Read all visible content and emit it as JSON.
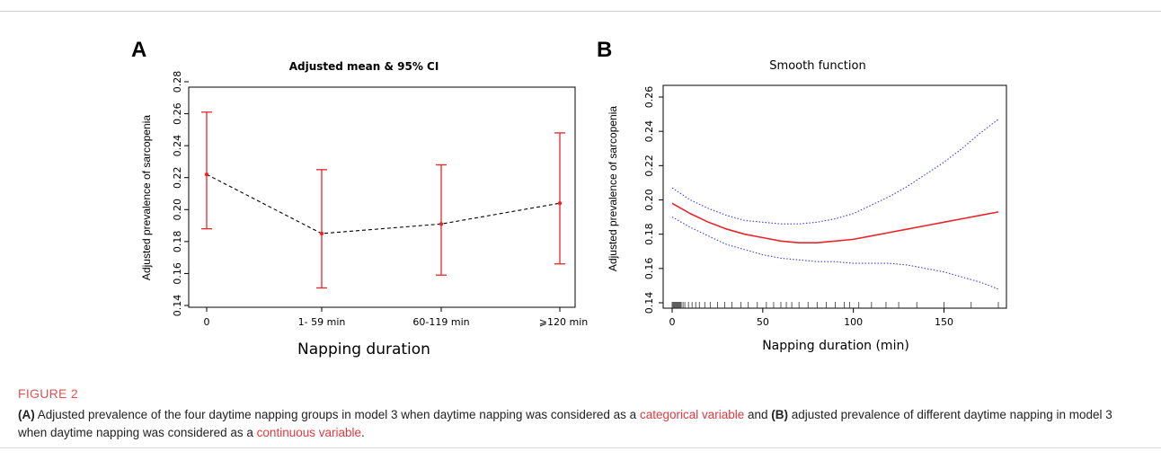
{
  "figure": {
    "label": "FIGURE 2",
    "caption": {
      "a_marker": "(A)",
      "part1": " Adjusted prevalence of the four daytime napping groups in model 3 when daytime napping was considered as a ",
      "link1": "categorical variable",
      "part2": " and ",
      "b_marker": "(B)",
      "part3": " adjusted prevalence of different daytime napping in model 3 when daytime napping was considered as a ",
      "link2": "continuous variable",
      "part4": "."
    }
  },
  "colors": {
    "red": "#e8262a",
    "blue": "#3b3bf0",
    "black": "#000000",
    "link": "#e0393e"
  },
  "chart_data": [
    {
      "panel": "A",
      "type": "scatter",
      "title": "Adjusted mean & 95% CI",
      "xlabel": "Napping duration",
      "ylabel": "Adjusted prevalence of sarcopenia",
      "categories": [
        "0",
        "1- 59 min",
        "60-119 min",
        "⩾120 min"
      ],
      "series": [
        {
          "values": [
            0.222,
            0.185,
            0.191,
            0.204
          ],
          "lower": [
            0.188,
            0.151,
            0.159,
            0.166
          ],
          "upper": [
            0.261,
            0.225,
            0.228,
            0.248
          ]
        }
      ],
      "ylim": [
        0.14,
        0.28
      ],
      "yticks": [
        0.14,
        0.16,
        0.18,
        0.2,
        0.22,
        0.24,
        0.26,
        0.28
      ],
      "ytick_labels": [
        "0.14",
        "0.16",
        "0.18",
        "0.20",
        "0.22",
        "0.24",
        "0.26",
        "0.28"
      ],
      "grid": false
    },
    {
      "panel": "B",
      "type": "line",
      "title": "Smooth function",
      "xlabel": "Napping duration (min)",
      "ylabel": "Adjusted prevalence of sarcopenia",
      "x": [
        0,
        10,
        20,
        30,
        40,
        50,
        60,
        70,
        80,
        90,
        100,
        110,
        120,
        130,
        140,
        150,
        160,
        170,
        180
      ],
      "series": [
        {
          "values": [
            0.198,
            0.192,
            0.187,
            0.183,
            0.18,
            0.178,
            0.176,
            0.175,
            0.175,
            0.176,
            0.177,
            0.179,
            0.181,
            0.183,
            0.185,
            0.187,
            0.189,
            0.191,
            0.193
          ]
        },
        {
          "values": [
            0.207,
            0.2,
            0.195,
            0.191,
            0.188,
            0.187,
            0.186,
            0.186,
            0.187,
            0.189,
            0.192,
            0.197,
            0.202,
            0.208,
            0.215,
            0.222,
            0.23,
            0.239,
            0.247
          ]
        },
        {
          "values": [
            0.19,
            0.184,
            0.179,
            0.174,
            0.171,
            0.168,
            0.166,
            0.165,
            0.164,
            0.164,
            0.163,
            0.163,
            0.163,
            0.162,
            0.16,
            0.158,
            0.155,
            0.152,
            0.148
          ]
        }
      ],
      "rug": [
        0,
        0.5,
        1,
        1.5,
        2,
        2.5,
        3,
        3.5,
        4,
        4.5,
        5,
        6,
        7,
        9,
        11,
        13,
        15,
        18,
        21,
        25,
        29,
        33,
        38,
        42,
        47,
        52,
        56,
        60,
        63,
        66,
        70,
        75,
        80,
        85,
        90,
        95,
        98,
        103,
        110,
        118,
        125,
        135,
        150,
        165,
        180
      ],
      "xlim": [
        0,
        180
      ],
      "xticks": [
        0,
        50,
        100,
        150
      ],
      "ylim": [
        0.14,
        0.26
      ],
      "yticks": [
        0.14,
        0.16,
        0.18,
        0.2,
        0.22,
        0.24,
        0.26
      ],
      "ytick_labels": [
        "0.14",
        "0.16",
        "0.18",
        "0.20",
        "0.22",
        "0.24",
        "0.26"
      ],
      "grid": false
    }
  ]
}
